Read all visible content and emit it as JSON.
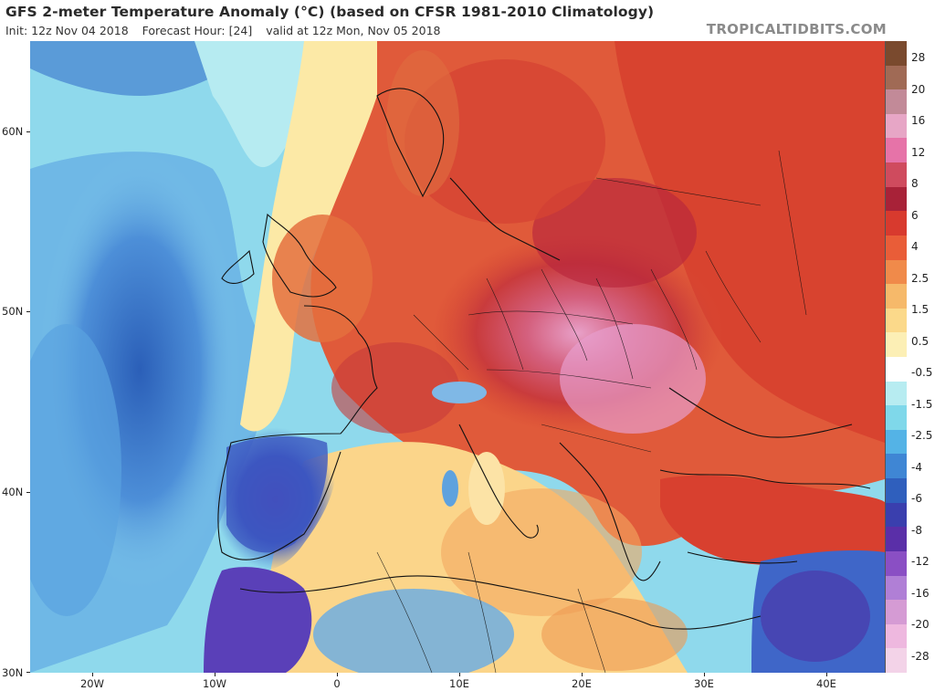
{
  "header": {
    "title": "GFS 2-meter Temperature Anomaly (°C) (based on CFSR 1981-2010 Climatology)",
    "init": "Init: 12z Nov 04 2018",
    "forecast_hour": "Forecast Hour: [24]",
    "valid": "valid at 12z Mon, Nov 05 2018",
    "brand": "TROPICALTIDBITS.COM"
  },
  "axes": {
    "lat_labels": [
      "60N",
      "50N",
      "40N",
      "30N"
    ],
    "lon_labels": [
      "20W",
      "10W",
      "0",
      "10E",
      "20E",
      "30E",
      "40E"
    ]
  },
  "colorbar": {
    "labels": [
      "28",
      "20",
      "16",
      "12",
      "8",
      "6",
      "4",
      "2.5",
      "1.5",
      "0.5",
      "-0.5",
      "-1.5",
      "-2.5",
      "-4",
      "-6",
      "-8",
      "-12",
      "-16",
      "-20",
      "-28"
    ],
    "colors": [
      "#7a4a2e",
      "#a06a55",
      "#c28a98",
      "#e7a6c6",
      "#e673a8",
      "#cf4b5e",
      "#a82238",
      "#d83a2e",
      "#e95d38",
      "#f08a4a",
      "#f6b96a",
      "#fbd98a",
      "#fcefb5",
      "#ffffff",
      "#b7ecf1",
      "#7fd8ea",
      "#54b3e6",
      "#3f86d4",
      "#2f5fbd",
      "#3a3fae",
      "#5a2fa8",
      "#8a4fc4",
      "#b07fd6",
      "#d59bd4",
      "#eeb8df",
      "#f3d3e8"
    ]
  }
}
